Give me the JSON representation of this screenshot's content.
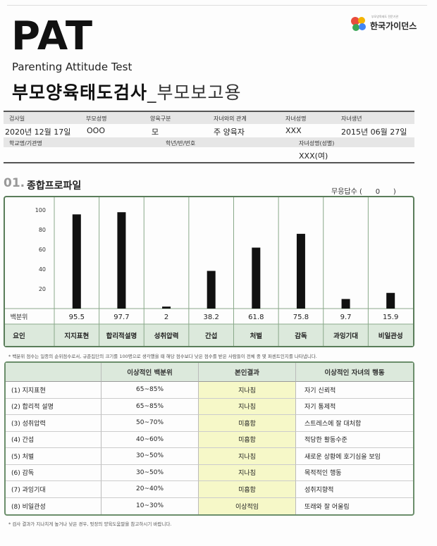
{
  "header": {
    "pat": "PAT",
    "subtitle": "Parenting Attitude Test",
    "title_main": "부모양육태도검사",
    "title_suffix": "_부모보고용",
    "logo_tag": "부모양육태도 전문기관",
    "logo_name": "한국가이던스",
    "logo_colors": [
      "#e94b3c",
      "#f4b400",
      "#3aa757",
      "#4285f4"
    ]
  },
  "info": {
    "labels": {
      "date": "검사일",
      "parent_name": "부모성명",
      "parent_type": "양육구분",
      "relation": "자녀와의 관계",
      "child_name": "자녀성명",
      "child_birth": "자녀생년",
      "school": "학교명/기관명",
      "grade": "학년/반/번호",
      "child_name_gender": "자녀성명(성별)"
    },
    "values": {
      "date": "2020년 12월 17일",
      "parent_name": "OOO",
      "parent_type": "모",
      "relation": "주 양육자",
      "child_name": "XXX",
      "child_birth": "2015년 06월 27일",
      "child_name_gender": "XXX(여)"
    }
  },
  "section1": {
    "num": "01.",
    "title": "종합프로파일",
    "no_response_label": "무응답수 (",
    "no_response_value": "0",
    "no_response_close": ")"
  },
  "chart_data": {
    "type": "bar",
    "categories": [
      "지지표현",
      "합리적설명",
      "성취압력",
      "간섭",
      "처벌",
      "감독",
      "과잉기대",
      "비일관성"
    ],
    "values": [
      95.5,
      97.7,
      2,
      38.2,
      61.8,
      75.8,
      9.7,
      15.9
    ],
    "value_labels": [
      "95.5",
      "97.7",
      "2",
      "38.2",
      "61.8",
      "75.8",
      "9.7",
      "15.9"
    ],
    "yticks": [
      "100",
      "80",
      "60",
      "40",
      "20"
    ],
    "ylim": [
      0,
      100
    ],
    "row_label_values": "백분위",
    "row_label_factors": "요인",
    "bar_color": "#111111",
    "label_row_color": "#dce9dc"
  },
  "note1": "* 백분위 점수는 일종의 순위점수로서, 규준집단의 크기를 100명으로 생각했을 때 해당 점수보다 낮은 점수를 받은 사람들이 전체 중 몇 퍼센트인지를 나타냅니다.",
  "table": {
    "headers": [
      "",
      "이상적인 백분위",
      "본인결과",
      "이상적인 자녀의 행동"
    ],
    "rows": [
      {
        "factor": "(1) 지지표현",
        "range": "65~85%",
        "result": "지나침",
        "behavior": "자기 신뢰적"
      },
      {
        "factor": "(2) 합리적 설명",
        "range": "65~85%",
        "result": "지나침",
        "behavior": "자기 통제적"
      },
      {
        "factor": "(3) 성취압력",
        "range": "50~70%",
        "result": "미흡함",
        "behavior": "스트레스에 잘 대처함"
      },
      {
        "factor": "(4) 간섭",
        "range": "40~60%",
        "result": "미흡함",
        "behavior": "적당한 활동수준"
      },
      {
        "factor": "(5) 처벌",
        "range": "30~50%",
        "result": "지나침",
        "behavior": "새로운 상황에 호기심을 보임"
      },
      {
        "factor": "(6) 감독",
        "range": "30~50%",
        "result": "지나침",
        "behavior": "목적적인 행동"
      },
      {
        "factor": "(7) 과잉기대",
        "range": "20~40%",
        "result": "미흡함",
        "behavior": "성취지향적"
      },
      {
        "factor": "(8) 비일관성",
        "range": "10~30%",
        "result": "이상적임",
        "behavior": "또래와 잘 어울림"
      }
    ]
  },
  "note2": "* 검사 결과가 지나치게 높거나 낮은 경우, 뒷장의 양육도움말을 참고하시기 바랍니다."
}
